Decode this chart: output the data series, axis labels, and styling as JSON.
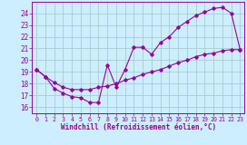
{
  "xlabel": "Windchill (Refroidissement éolien,°C)",
  "bg_color": "#cceeff",
  "grid_color": "#aacccc",
  "line_color": "#990099",
  "xlim": [
    -0.5,
    23.5
  ],
  "ylim": [
    15.5,
    25.0
  ],
  "yticks": [
    16,
    17,
    18,
    19,
    20,
    21,
    22,
    23,
    24
  ],
  "xticks": [
    0,
    1,
    2,
    3,
    4,
    5,
    6,
    7,
    8,
    9,
    10,
    11,
    12,
    13,
    14,
    15,
    16,
    17,
    18,
    19,
    20,
    21,
    22,
    23
  ],
  "curve1_x": [
    0,
    1,
    2,
    3,
    4,
    5,
    6,
    7,
    8,
    9,
    10,
    11,
    12,
    13,
    14,
    15,
    16,
    17,
    18,
    19,
    20,
    21,
    22,
    23
  ],
  "curve1_y": [
    19.2,
    18.6,
    17.6,
    17.2,
    16.9,
    16.8,
    16.4,
    16.4,
    19.6,
    17.7,
    19.2,
    21.1,
    21.1,
    20.5,
    21.5,
    22.0,
    22.8,
    23.3,
    23.8,
    24.1,
    24.4,
    24.5,
    24.0,
    20.9
  ],
  "curve2_x": [
    0,
    1,
    2,
    3,
    4,
    5,
    6,
    7,
    8,
    9,
    10,
    11,
    12,
    13,
    14,
    15,
    16,
    17,
    18,
    19,
    20,
    21,
    22,
    23
  ],
  "curve2_y": [
    19.2,
    18.6,
    18.1,
    17.7,
    17.5,
    17.5,
    17.5,
    17.7,
    17.8,
    18.0,
    18.3,
    18.5,
    18.8,
    19.0,
    19.2,
    19.5,
    19.8,
    20.0,
    20.3,
    20.5,
    20.6,
    20.8,
    20.9,
    20.9
  ]
}
